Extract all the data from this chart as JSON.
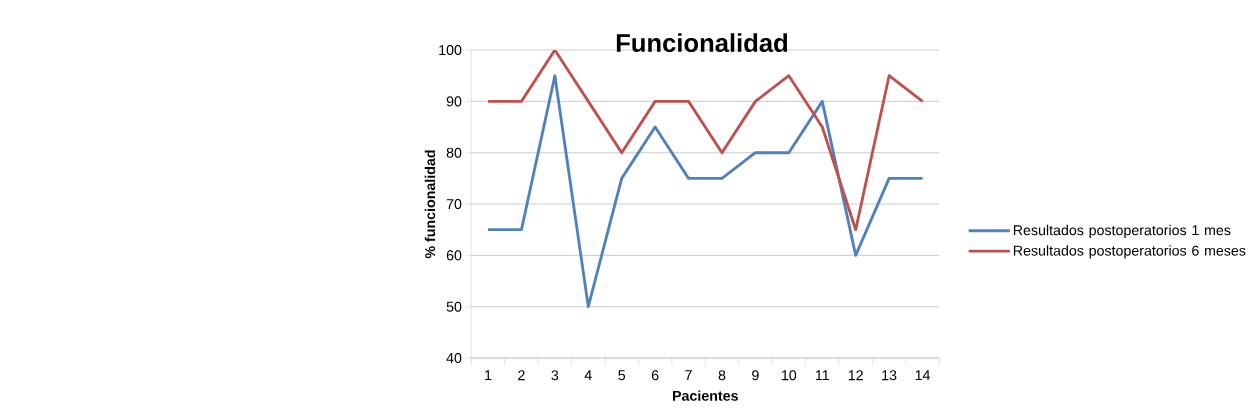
{
  "chart_data": {
    "type": "line",
    "title": "Funcionalidad",
    "xlabel": "Pacientes",
    "ylabel": "% funcionalidad",
    "categories": [
      "1",
      "2",
      "3",
      "4",
      "5",
      "6",
      "7",
      "8",
      "9",
      "10",
      "11",
      "12",
      "13",
      "14"
    ],
    "series": [
      {
        "name": "Resultados postoperatorios 1 mes",
        "color": "#4f81bd",
        "values": [
          65,
          65,
          95,
          50,
          75,
          85,
          75,
          75,
          80,
          80,
          90,
          60,
          75,
          75
        ]
      },
      {
        "name": "Resultados postoperatorios 6 meses",
        "color": "#c0504d",
        "values": [
          90,
          90,
          100,
          90,
          80,
          90,
          90,
          80,
          90,
          95,
          85,
          65,
          95,
          90
        ]
      }
    ],
    "ylim": [
      40,
      100
    ],
    "yticks": [
      40,
      50,
      60,
      70,
      80,
      90,
      100
    ],
    "grid": "y",
    "legend": "right",
    "marker": "none",
    "line_style": "solid"
  }
}
